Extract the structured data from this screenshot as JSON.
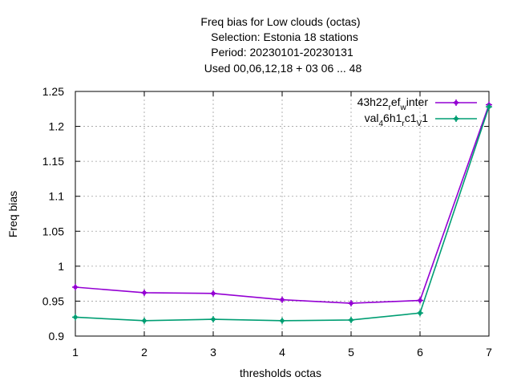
{
  "chart_data": {
    "type": "line",
    "title_lines": [
      "Freq bias  for Low clouds (octas)",
      "Selection: Estonia      18 stations",
      "Period: 20230101-20230131",
      "Used  00,06,12,18  + 03 06 ... 48"
    ],
    "xlabel": "thresholds octas",
    "ylabel": "Freq bias",
    "x": [
      1,
      2,
      3,
      4,
      5,
      6,
      7
    ],
    "xlim": [
      1,
      7
    ],
    "ylim": [
      0.9,
      1.25
    ],
    "xticks": [
      "1",
      "2",
      "3",
      "4",
      "5",
      "6",
      "7"
    ],
    "yticks": [
      "0.9",
      "0.95",
      "1",
      "1.05",
      "1.1",
      "1.15",
      "1.2",
      "1.25"
    ],
    "grid": true,
    "legend_position": "top-right",
    "series": [
      {
        "legend_parts": [
          "43h22",
          "r",
          "ef",
          "w",
          "inter"
        ],
        "color": "#9400d3",
        "values": [
          0.97,
          0.962,
          0.961,
          0.952,
          0.947,
          0.951,
          1.231
        ]
      },
      {
        "legend_parts": [
          "val",
          "4",
          "6h1",
          "r",
          "c1",
          "V",
          "1"
        ],
        "color": "#009e73",
        "values": [
          0.927,
          0.922,
          0.924,
          0.922,
          0.923,
          0.933,
          1.228
        ]
      }
    ]
  }
}
